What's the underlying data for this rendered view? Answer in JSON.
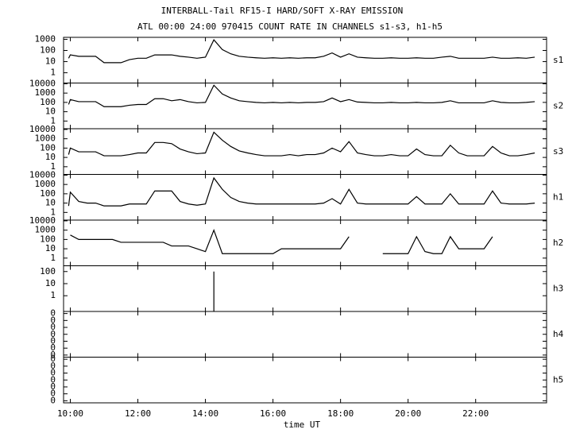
{
  "chart_data": [
    {
      "type": "line",
      "title": "INTERBALL-Tail RF15-I HARD/SOFT X-RAY EMISSION",
      "subtitle": "ATL 00:00 24:00 970415  COUNT RATE IN CHANNELS s1-s3, h1-h5",
      "log": true,
      "x": [
        9.95,
        10,
        10.25,
        10.5,
        10.75,
        11,
        11.25,
        11.5,
        11.75,
        12,
        12.25,
        12.5,
        12.75,
        13,
        13.25,
        13.5,
        13.75,
        14,
        14.25,
        14.5,
        14.75,
        15,
        15.25,
        15.5,
        15.75,
        16,
        16.25,
        16.5,
        16.75,
        17,
        17.25,
        17.5,
        17.75,
        18,
        18.25,
        18.5,
        18.75,
        19,
        19.25,
        19.5,
        19.75,
        20,
        20.25,
        20.5,
        20.75,
        21,
        21.25,
        21.5,
        21.75,
        22,
        22.25,
        22.5,
        22.75,
        23,
        23.25,
        23.5,
        23.75
      ],
      "xlim": [
        9.8,
        24.1
      ],
      "ylim": [
        0.12,
        1500
      ],
      "yticks": [
        1,
        10,
        100,
        1000
      ],
      "series": [
        {
          "name": "s1",
          "color": "#000000",
          "values": [
            20,
            40,
            30,
            30,
            30,
            8,
            8,
            8,
            15,
            20,
            20,
            40,
            40,
            40,
            30,
            25,
            20,
            25,
            900,
            120,
            50,
            30,
            25,
            22,
            20,
            22,
            20,
            22,
            20,
            22,
            22,
            30,
            60,
            25,
            50,
            25,
            22,
            20,
            20,
            22,
            20,
            20,
            22,
            20,
            20,
            25,
            30,
            20,
            20,
            20,
            20,
            25,
            20,
            20,
            22,
            20,
            25
          ]
        }
      ]
    },
    {
      "type": "line",
      "log": true,
      "x": [
        9.95,
        10,
        10.25,
        10.5,
        10.75,
        11,
        11.25,
        11.5,
        11.75,
        12,
        12.25,
        12.5,
        12.75,
        13,
        13.25,
        13.5,
        13.75,
        14,
        14.25,
        14.5,
        14.75,
        15,
        15.25,
        15.5,
        15.75,
        16,
        16.25,
        16.5,
        16.75,
        17,
        17.25,
        17.5,
        17.75,
        18,
        18.25,
        18.5,
        18.75,
        19,
        19.25,
        19.5,
        19.75,
        20,
        20.25,
        20.5,
        20.75,
        21,
        21.25,
        21.5,
        21.75,
        22,
        22.25,
        22.5,
        22.75,
        23,
        23.25,
        23.5,
        23.75
      ],
      "xlim": [
        9.8,
        24.1
      ],
      "ylim": [
        0.15,
        12000
      ],
      "yticks": [
        1,
        10,
        100,
        1000,
        10000
      ],
      "series": [
        {
          "name": "s2",
          "color": "#000000",
          "values": [
            60,
            200,
            120,
            120,
            120,
            35,
            35,
            35,
            50,
            60,
            60,
            250,
            250,
            150,
            200,
            120,
            90,
            100,
            7000,
            800,
            300,
            150,
            120,
            100,
            90,
            100,
            90,
            100,
            90,
            100,
            100,
            120,
            300,
            120,
            200,
            110,
            100,
            90,
            90,
            100,
            90,
            90,
            100,
            90,
            90,
            100,
            150,
            90,
            90,
            90,
            90,
            150,
            100,
            90,
            90,
            100,
            120
          ]
        }
      ]
    },
    {
      "type": "line",
      "log": true,
      "x": [
        9.95,
        10,
        10.25,
        10.5,
        10.75,
        11,
        11.25,
        11.5,
        11.75,
        12,
        12.25,
        12.5,
        12.75,
        13,
        13.25,
        13.5,
        13.75,
        14,
        14.25,
        14.5,
        14.75,
        15,
        15.25,
        15.5,
        15.75,
        16,
        16.25,
        16.5,
        16.75,
        17,
        17.25,
        17.5,
        17.75,
        18,
        18.25,
        18.5,
        18.75,
        19,
        19.25,
        19.5,
        19.75,
        20,
        20.25,
        20.5,
        20.75,
        21,
        21.25,
        21.5,
        21.75,
        22,
        22.25,
        22.5,
        22.75,
        23,
        23.25,
        23.5,
        23.75
      ],
      "xlim": [
        9.8,
        24.1
      ],
      "ylim": [
        0.15,
        12000
      ],
      "yticks": [
        1,
        10,
        100,
        1000,
        10000
      ],
      "series": [
        {
          "name": "s3",
          "color": "#000000",
          "values": [
            20,
            100,
            40,
            40,
            40,
            15,
            15,
            15,
            20,
            30,
            30,
            400,
            400,
            300,
            80,
            40,
            25,
            30,
            5000,
            700,
            150,
            50,
            30,
            20,
            15,
            15,
            15,
            20,
            15,
            20,
            20,
            30,
            100,
            40,
            500,
            30,
            20,
            15,
            15,
            20,
            15,
            15,
            80,
            20,
            15,
            15,
            200,
            30,
            15,
            15,
            15,
            150,
            30,
            15,
            15,
            20,
            30
          ]
        }
      ]
    },
    {
      "type": "line",
      "log": true,
      "x": [
        9.95,
        10,
        10.25,
        10.5,
        10.75,
        11,
        11.25,
        11.5,
        11.75,
        12,
        12.25,
        12.5,
        12.75,
        13,
        13.25,
        13.5,
        13.75,
        14,
        14.25,
        14.5,
        14.75,
        15,
        15.25,
        15.5,
        15.75,
        16,
        16.25,
        16.5,
        16.75,
        17,
        17.25,
        17.5,
        17.75,
        18,
        18.25,
        18.5,
        18.75,
        19,
        19.25,
        19.5,
        19.75,
        20,
        20.25,
        20.5,
        20.75,
        21,
        21.25,
        21.5,
        21.75,
        22,
        22.25,
        22.5,
        22.75,
        23,
        23.25,
        23.5,
        23.75
      ],
      "xlim": [
        9.8,
        24.1
      ],
      "ylim": [
        0.15,
        12000
      ],
      "yticks": [
        1,
        10,
        100,
        1000,
        10000
      ],
      "series": [
        {
          "name": "h1",
          "color": "#000000",
          "values": [
            5,
            150,
            15,
            10,
            10,
            5,
            5,
            5,
            8,
            8,
            8,
            200,
            200,
            200,
            15,
            8,
            6,
            8,
            5000,
            300,
            40,
            15,
            10,
            8,
            8,
            8,
            8,
            8,
            8,
            8,
            8,
            10,
            30,
            8,
            300,
            10,
            8,
            8,
            8,
            8,
            8,
            8,
            50,
            8,
            8,
            8,
            100,
            8,
            8,
            8,
            8,
            200,
            10,
            8,
            8,
            8,
            10
          ]
        }
      ]
    },
    {
      "type": "line",
      "log": true,
      "x": [
        9.95,
        10,
        10.25,
        10.5,
        10.75,
        11,
        11.25,
        11.5,
        11.75,
        12,
        12.25,
        12.5,
        12.75,
        13,
        13.25,
        13.5,
        13.75,
        14,
        14.25,
        14.5,
        14.75,
        15,
        15.25,
        15.5,
        15.75,
        16,
        16.25,
        16.5,
        16.75,
        17,
        17.25,
        17.5,
        17.75,
        18,
        18.25,
        18.5,
        18.75,
        19,
        19.25,
        19.5,
        19.75,
        20,
        20.25,
        20.5,
        20.75,
        21,
        21.25,
        21.5,
        21.75,
        22,
        22.25,
        22.5,
        22.75,
        23,
        23.25,
        23.5,
        23.75
      ],
      "xlim": [
        9.8,
        24.1
      ],
      "ylim": [
        0.15,
        12000
      ],
      "yticks": [
        1,
        10,
        100,
        1000,
        10000
      ],
      "series": [
        {
          "name": "h2",
          "color": "#000000",
          "values": [
            null,
            300,
            100,
            100,
            100,
            100,
            100,
            50,
            50,
            50,
            50,
            50,
            50,
            20,
            20,
            20,
            10,
            5,
            1000,
            3,
            3,
            3,
            3,
            3,
            3,
            3,
            10,
            10,
            10,
            10,
            10,
            10,
            10,
            10,
            200,
            null,
            null,
            null,
            3,
            3,
            3,
            3,
            200,
            5,
            3,
            3,
            200,
            10,
            10,
            10,
            10,
            200,
            null,
            null,
            null,
            null,
            null
          ]
        }
      ]
    },
    {
      "type": "line",
      "log": true,
      "x": [
        9.95,
        10,
        10.25,
        10.5,
        10.75,
        11,
        11.25,
        11.5,
        11.75,
        12,
        12.25,
        12.5,
        12.75,
        13,
        13.25,
        13.5,
        13.75,
        14,
        14.25,
        14.5,
        14.75,
        15,
        15.25,
        15.5,
        15.75,
        16,
        16.25,
        16.5,
        16.75,
        17,
        17.25,
        17.5,
        17.75,
        18,
        18.25,
        18.5,
        18.75,
        19,
        19.25,
        19.5,
        19.75,
        20,
        20.25,
        20.5,
        20.75,
        21,
        21.25,
        21.5,
        21.75,
        22,
        22.25,
        22.5,
        22.75,
        23,
        23.25,
        23.5,
        23.75
      ],
      "xlim": [
        9.8,
        24.1
      ],
      "ylim": [
        0.05,
        300
      ],
      "yticks": [
        1,
        10,
        100
      ],
      "series": [
        {
          "name": "h3",
          "color": "#000000",
          "values": [
            null,
            null,
            null,
            null,
            null,
            null,
            null,
            null,
            null,
            null,
            null,
            null,
            null,
            null,
            null,
            null,
            null,
            null,
            100,
            null,
            null,
            null,
            null,
            null,
            null,
            null,
            null,
            null,
            null,
            null,
            null,
            null,
            null,
            null,
            null,
            null,
            null,
            null,
            null,
            null,
            null,
            null,
            null,
            null,
            null,
            null,
            null,
            null,
            null,
            null,
            null,
            null,
            null,
            null,
            null,
            null,
            null
          ]
        }
      ]
    },
    {
      "type": "line",
      "log": true,
      "x": [
        9.95,
        10,
        10.25,
        10.5,
        10.75,
        11,
        11.25,
        11.5,
        11.75,
        12,
        12.25,
        12.5,
        12.75,
        13,
        13.25,
        13.5,
        13.75,
        14,
        14.25,
        14.5,
        14.75,
        15,
        15.25,
        15.5,
        15.75,
        16,
        16.25,
        16.5,
        16.75,
        17,
        17.25,
        17.5,
        17.75,
        18,
        18.25,
        18.5,
        18.75,
        19,
        19.25,
        19.5,
        19.75,
        20,
        20.25,
        20.5,
        20.75,
        21,
        21.25,
        21.5,
        21.75,
        22,
        22.25,
        22.5,
        22.75,
        23,
        23.25,
        23.5,
        23.75
      ],
      "xlim": [
        9.8,
        24.1
      ],
      "ylim": [
        5e-07,
        2
      ],
      "yticks": [
        {
          "value": 1e-06,
          "label": "0"
        },
        {
          "value": 1e-05,
          "label": "0"
        },
        {
          "value": 0.0001,
          "label": "0"
        },
        {
          "value": 0.001,
          "label": "0"
        },
        {
          "value": 0.01,
          "label": "0"
        },
        {
          "value": 0.1,
          "label": "0"
        },
        {
          "value": 1,
          "label": "0"
        }
      ],
      "series": [
        {
          "name": "h4",
          "color": "#000000",
          "values": [
            null,
            null,
            null,
            null,
            null,
            null,
            null,
            null,
            null,
            null,
            null,
            null,
            null,
            null,
            null,
            null,
            null,
            null,
            null,
            null,
            null,
            null,
            null,
            null,
            null,
            null,
            null,
            null,
            null,
            null,
            null,
            null,
            null,
            null,
            null,
            null,
            null,
            null,
            null,
            null,
            null,
            null,
            null,
            null,
            null,
            null,
            null,
            null,
            null,
            null,
            null,
            null,
            null,
            null,
            null,
            null,
            null
          ]
        }
      ]
    },
    {
      "type": "line",
      "log": true,
      "xlabel": "time UT",
      "x": [
        9.95,
        10,
        10.25,
        10.5,
        10.75,
        11,
        11.25,
        11.5,
        11.75,
        12,
        12.25,
        12.5,
        12.75,
        13,
        13.25,
        13.5,
        13.75,
        14,
        14.25,
        14.5,
        14.75,
        15,
        15.25,
        15.5,
        15.75,
        16,
        16.25,
        16.5,
        16.75,
        17,
        17.25,
        17.5,
        17.75,
        18,
        18.25,
        18.5,
        18.75,
        19,
        19.25,
        19.5,
        19.75,
        20,
        20.25,
        20.5,
        20.75,
        21,
        21.25,
        21.5,
        21.75,
        22,
        22.25,
        22.5,
        22.75,
        23,
        23.25,
        23.5,
        23.75
      ],
      "xlim": [
        9.8,
        24.1
      ],
      "xticks": [
        {
          "value": 10,
          "label": "10:00"
        },
        {
          "value": 12,
          "label": "12:00"
        },
        {
          "value": 14,
          "label": "14:00"
        },
        {
          "value": 16,
          "label": "16:00"
        },
        {
          "value": 18,
          "label": "18:00"
        },
        {
          "value": 20,
          "label": "20:00"
        },
        {
          "value": 22,
          "label": "22:00"
        }
      ],
      "ylim": [
        5e-07,
        2
      ],
      "yticks": [
        {
          "value": 1e-06,
          "label": "0"
        },
        {
          "value": 1e-05,
          "label": "0"
        },
        {
          "value": 0.0001,
          "label": "0"
        },
        {
          "value": 0.001,
          "label": "0"
        },
        {
          "value": 0.01,
          "label": "0"
        },
        {
          "value": 0.1,
          "label": "0"
        },
        {
          "value": 1,
          "label": "0"
        }
      ],
      "series": [
        {
          "name": "h5",
          "color": "#000000",
          "values": [
            null,
            null,
            null,
            null,
            null,
            null,
            null,
            null,
            null,
            null,
            null,
            null,
            null,
            null,
            null,
            null,
            null,
            null,
            null,
            null,
            null,
            null,
            null,
            null,
            null,
            null,
            null,
            null,
            null,
            null,
            null,
            null,
            null,
            null,
            null,
            null,
            null,
            null,
            null,
            null,
            null,
            null,
            null,
            null,
            null,
            null,
            null,
            null,
            null,
            null,
            null,
            null,
            null,
            null,
            null,
            null,
            null
          ]
        }
      ]
    }
  ]
}
